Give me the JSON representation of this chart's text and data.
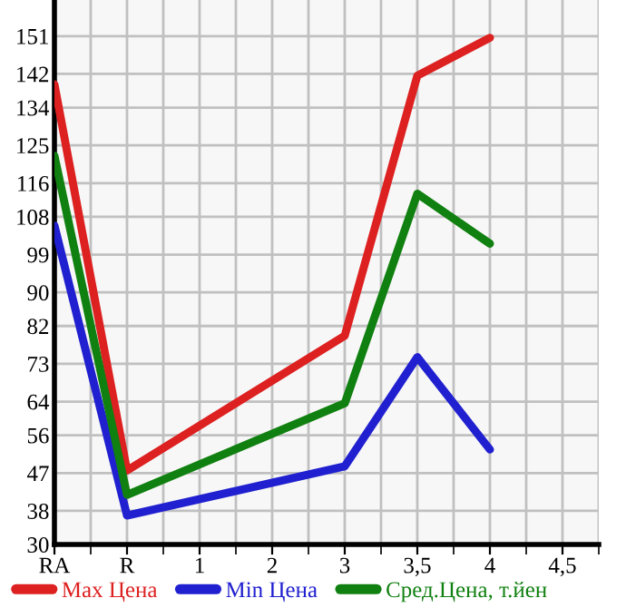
{
  "chart_data": {
    "type": "line",
    "categories": [
      "RA",
      "R",
      "1",
      "2",
      "3",
      "3,5",
      "4",
      "4,5"
    ],
    "series": [
      {
        "name": "Max Цена",
        "color": "#dd2020",
        "values": [
          139.5,
          47.6,
          null,
          null,
          79.7,
          141.6,
          150.6,
          null
        ]
      },
      {
        "name": "Min Цена",
        "color": "#2020d0",
        "values": [
          105.9,
          36.9,
          null,
          null,
          48.6,
          74.6,
          52.6,
          null
        ]
      },
      {
        "name": "Сред.Цена, т.йен",
        "color": "#108010",
        "values": [
          122.5,
          41.8,
          null,
          null,
          63.6,
          113.5,
          101.6,
          null
        ]
      }
    ],
    "ylim": [
      30,
      159.6
    ],
    "yticks": [
      30,
      38,
      47,
      56,
      64,
      73,
      82,
      90,
      99,
      108,
      116,
      125,
      134,
      142,
      151
    ],
    "grid": true,
    "legend": "bottom",
    "marker": "none",
    "line_style": "solid"
  }
}
